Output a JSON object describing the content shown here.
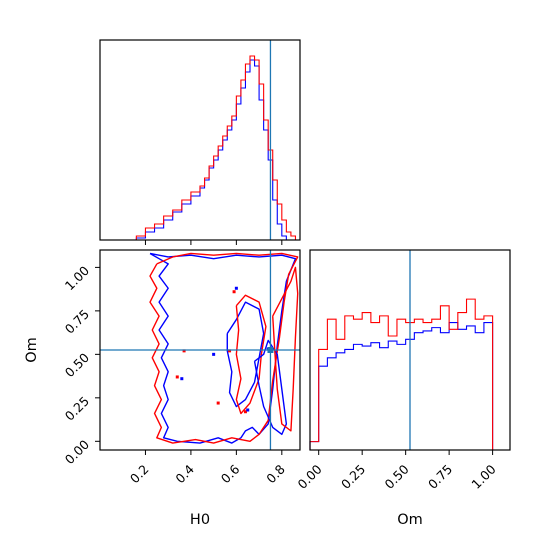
{
  "chart_data": {
    "type": "corner",
    "parameters": [
      "H0",
      "Om"
    ],
    "truths": {
      "H0": 0.75,
      "Om": 0.525
    },
    "colors": {
      "series_a": "#0000ff",
      "series_b": "#ff0000",
      "truth": "#1f77b4"
    },
    "axes": {
      "H0": {
        "label": "H0",
        "range": [
          0.0,
          0.88
        ],
        "ticks": [
          0.2,
          0.4,
          0.6,
          0.8
        ],
        "tick_labels": [
          "0.2",
          "0.4",
          "0.6",
          "0.8"
        ]
      },
      "Om": {
        "label": "Om",
        "range": [
          -0.05,
          1.1
        ],
        "ticks": [
          0.0,
          0.25,
          0.5,
          0.75,
          1.0
        ],
        "tick_labels": [
          "0.00",
          "0.25",
          "0.50",
          "0.75",
          "1.00"
        ]
      }
    },
    "hist_H0": {
      "bin_edges": [
        0.0,
        0.04,
        0.08,
        0.12,
        0.16,
        0.2,
        0.24,
        0.28,
        0.32,
        0.36,
        0.4,
        0.44,
        0.46,
        0.48,
        0.5,
        0.52,
        0.54,
        0.56,
        0.58,
        0.6,
        0.62,
        0.64,
        0.66,
        0.68,
        0.7,
        0.72,
        0.74,
        0.76,
        0.78,
        0.8,
        0.82,
        0.84,
        0.86,
        0.88
      ],
      "series": [
        {
          "color": "#0000ff",
          "values": [
            0.0,
            0.0,
            0.0,
            0.0,
            0.01,
            0.04,
            0.06,
            0.1,
            0.14,
            0.18,
            0.22,
            0.26,
            0.3,
            0.36,
            0.4,
            0.45,
            0.5,
            0.55,
            0.6,
            0.68,
            0.76,
            0.84,
            0.9,
            0.87,
            0.7,
            0.55,
            0.4,
            0.2,
            0.08,
            0.02,
            0.0,
            0.0,
            0.0
          ]
        },
        {
          "color": "#ff0000",
          "values": [
            0.0,
            0.0,
            0.0,
            0.0,
            0.02,
            0.06,
            0.08,
            0.12,
            0.15,
            0.2,
            0.24,
            0.27,
            0.31,
            0.37,
            0.42,
            0.47,
            0.52,
            0.57,
            0.62,
            0.72,
            0.8,
            0.88,
            0.92,
            0.9,
            0.78,
            0.6,
            0.45,
            0.3,
            0.18,
            0.1,
            0.04,
            0.02,
            0.0
          ]
        }
      ]
    },
    "hist_Om": {
      "bin_edges": [
        -0.05,
        0.0,
        0.05,
        0.1,
        0.15,
        0.2,
        0.25,
        0.3,
        0.35,
        0.4,
        0.45,
        0.5,
        0.55,
        0.6,
        0.65,
        0.7,
        0.75,
        0.8,
        0.85,
        0.9,
        0.95,
        1.0,
        1.05,
        1.1
      ],
      "series": [
        {
          "color": "#0000ff",
          "values": [
            0.05,
            0.5,
            0.55,
            0.58,
            0.6,
            0.63,
            0.62,
            0.64,
            0.61,
            0.65,
            0.63,
            0.66,
            0.7,
            0.71,
            0.73,
            0.7,
            0.76,
            0.72,
            0.74,
            0.7,
            0.76,
            0.0,
            0.0
          ]
        },
        {
          "color": "#ff0000",
          "values": [
            0.05,
            0.6,
            0.78,
            0.66,
            0.8,
            0.78,
            0.82,
            0.76,
            0.8,
            0.68,
            0.78,
            0.76,
            0.78,
            0.76,
            0.78,
            0.86,
            0.72,
            0.82,
            0.9,
            0.78,
            0.8,
            0.0,
            0.0
          ]
        }
      ]
    },
    "contours": [
      {
        "color": "#0000ff",
        "points": [
          [
            0.22,
            1.08
          ],
          [
            0.26,
            1.05
          ],
          [
            0.3,
            1.02
          ],
          [
            0.26,
            0.95
          ],
          [
            0.3,
            0.88
          ],
          [
            0.26,
            0.8
          ],
          [
            0.3,
            0.72
          ],
          [
            0.26,
            0.64
          ],
          [
            0.3,
            0.56
          ],
          [
            0.27,
            0.48
          ],
          [
            0.3,
            0.4
          ],
          [
            0.28,
            0.32
          ],
          [
            0.3,
            0.24
          ],
          [
            0.27,
            0.16
          ],
          [
            0.3,
            0.08
          ],
          [
            0.28,
            0.02
          ],
          [
            0.34,
            0.0
          ],
          [
            0.44,
            -0.01
          ],
          [
            0.52,
            0.02
          ],
          [
            0.58,
            -0.01
          ],
          [
            0.62,
            0.02
          ],
          [
            0.64,
            0.06
          ],
          [
            0.67,
            0.08
          ],
          [
            0.7,
            0.04
          ],
          [
            0.74,
            0.1
          ],
          [
            0.76,
            0.3
          ],
          [
            0.78,
            0.55
          ],
          [
            0.8,
            0.75
          ],
          [
            0.82,
            0.92
          ],
          [
            0.86,
            1.05
          ],
          [
            0.8,
            1.07
          ],
          [
            0.7,
            1.06
          ],
          [
            0.6,
            1.07
          ],
          [
            0.5,
            1.05
          ],
          [
            0.4,
            1.07
          ],
          [
            0.3,
            1.06
          ],
          [
            0.22,
            1.08
          ]
        ]
      },
      {
        "color": "#ff0000",
        "points": [
          [
            0.25,
            1.02
          ],
          [
            0.22,
            0.95
          ],
          [
            0.25,
            0.88
          ],
          [
            0.22,
            0.8
          ],
          [
            0.26,
            0.72
          ],
          [
            0.23,
            0.64
          ],
          [
            0.26,
            0.56
          ],
          [
            0.23,
            0.48
          ],
          [
            0.26,
            0.4
          ],
          [
            0.24,
            0.32
          ],
          [
            0.27,
            0.24
          ],
          [
            0.24,
            0.16
          ],
          [
            0.27,
            0.08
          ],
          [
            0.25,
            0.02
          ],
          [
            0.32,
            -0.01
          ],
          [
            0.42,
            0.01
          ],
          [
            0.5,
            -0.01
          ],
          [
            0.58,
            0.02
          ],
          [
            0.66,
            0.0
          ],
          [
            0.7,
            0.04
          ],
          [
            0.74,
            0.12
          ],
          [
            0.76,
            0.35
          ],
          [
            0.79,
            0.6
          ],
          [
            0.81,
            0.8
          ],
          [
            0.83,
            0.96
          ],
          [
            0.87,
            1.06
          ],
          [
            0.8,
            1.08
          ],
          [
            0.7,
            1.07
          ],
          [
            0.6,
            1.08
          ],
          [
            0.5,
            1.07
          ],
          [
            0.4,
            1.08
          ],
          [
            0.32,
            1.06
          ],
          [
            0.25,
            1.02
          ]
        ]
      },
      {
        "color": "#0000ff",
        "points": [
          [
            0.56,
            0.62
          ],
          [
            0.6,
            0.7
          ],
          [
            0.64,
            0.8
          ],
          [
            0.7,
            0.76
          ],
          [
            0.72,
            0.62
          ],
          [
            0.7,
            0.48
          ],
          [
            0.68,
            0.34
          ],
          [
            0.64,
            0.24
          ],
          [
            0.6,
            0.2
          ],
          [
            0.57,
            0.28
          ],
          [
            0.58,
            0.4
          ],
          [
            0.56,
            0.52
          ],
          [
            0.56,
            0.62
          ]
        ]
      },
      {
        "color": "#ff0000",
        "points": [
          [
            0.6,
            0.78
          ],
          [
            0.64,
            0.84
          ],
          [
            0.7,
            0.8
          ],
          [
            0.73,
            0.66
          ],
          [
            0.71,
            0.5
          ],
          [
            0.7,
            0.36
          ],
          [
            0.66,
            0.22
          ],
          [
            0.62,
            0.16
          ],
          [
            0.6,
            0.24
          ],
          [
            0.62,
            0.36
          ],
          [
            0.6,
            0.5
          ],
          [
            0.61,
            0.64
          ],
          [
            0.6,
            0.78
          ]
        ]
      },
      {
        "color": "#0000ff",
        "points": [
          [
            0.68,
            0.46
          ],
          [
            0.72,
            0.5
          ],
          [
            0.74,
            0.58
          ],
          [
            0.78,
            0.5
          ],
          [
            0.8,
            0.3
          ],
          [
            0.82,
            0.1
          ],
          [
            0.8,
            0.04
          ],
          [
            0.76,
            0.08
          ],
          [
            0.72,
            0.2
          ],
          [
            0.7,
            0.32
          ],
          [
            0.68,
            0.46
          ]
        ]
      },
      {
        "color": "#ff0000",
        "points": [
          [
            0.76,
            0.72
          ],
          [
            0.8,
            0.82
          ],
          [
            0.84,
            0.92
          ],
          [
            0.86,
            1.0
          ],
          [
            0.87,
            0.85
          ],
          [
            0.86,
            0.6
          ],
          [
            0.85,
            0.3
          ],
          [
            0.84,
            0.06
          ],
          [
            0.8,
            0.1
          ],
          [
            0.78,
            0.3
          ],
          [
            0.77,
            0.5
          ],
          [
            0.76,
            0.72
          ]
        ]
      }
    ],
    "markers": [
      {
        "color": "#ff0000",
        "points": [
          [
            0.37,
            0.52
          ],
          [
            0.57,
            0.52
          ],
          [
            0.59,
            0.86
          ],
          [
            0.64,
            0.17
          ],
          [
            0.52,
            0.22
          ],
          [
            0.34,
            0.37
          ]
        ]
      },
      {
        "color": "#0000ff",
        "points": [
          [
            0.5,
            0.5
          ],
          [
            0.6,
            0.88
          ],
          [
            0.65,
            0.18
          ],
          [
            0.36,
            0.36
          ],
          [
            0.74,
            0.53
          ]
        ]
      }
    ]
  }
}
